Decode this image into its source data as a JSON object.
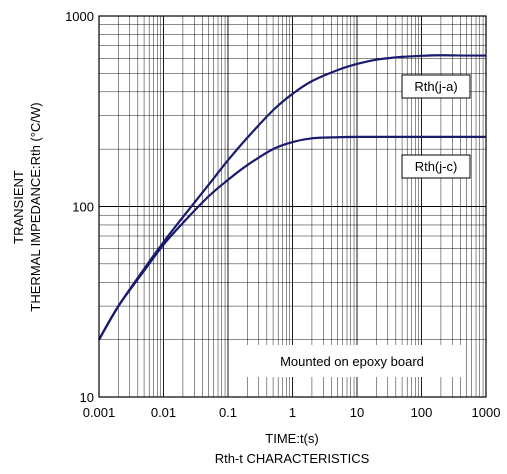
{
  "chart_data": {
    "type": "line",
    "title": "Rth-t CHARACTERISTICS",
    "xlabel": "TIME:t(s)",
    "ylabel_line1": "TRANSIENT",
    "ylabel_line2": "THERMAL IMPEDANCE:Rth (°C/W)",
    "x_scale": "log",
    "y_scale": "log",
    "xlim": [
      0.001,
      1000
    ],
    "ylim": [
      10,
      1000
    ],
    "x_ticks": [
      "0.001",
      "0.01",
      "0.1",
      "1",
      "10",
      "100",
      "1000"
    ],
    "y_ticks": [
      "10",
      "100",
      "1000"
    ],
    "grid": true,
    "annotation": "Mounted on epoxy board",
    "series": [
      {
        "name": "Rth(j-a)",
        "color": "#1a1a6e",
        "x": [
          0.001,
          0.002,
          0.005,
          0.01,
          0.02,
          0.05,
          0.1,
          0.2,
          0.5,
          1,
          2,
          5,
          10,
          20,
          50,
          100,
          200,
          500,
          1000
        ],
        "y": [
          20,
          30,
          47,
          65,
          88,
          130,
          175,
          230,
          320,
          390,
          455,
          520,
          560,
          590,
          610,
          618,
          622,
          620,
          620
        ]
      },
      {
        "name": "Rth(j-c)",
        "color": "#1a1a6e",
        "x": [
          0.001,
          0.002,
          0.005,
          0.01,
          0.02,
          0.05,
          0.1,
          0.2,
          0.5,
          1,
          2,
          5,
          10,
          20,
          50,
          100,
          200,
          500,
          1000
        ],
        "y": [
          20,
          30,
          46,
          63,
          82,
          113,
          138,
          165,
          200,
          218,
          228,
          231,
          232,
          232,
          232,
          232,
          232,
          232,
          232
        ]
      }
    ]
  }
}
